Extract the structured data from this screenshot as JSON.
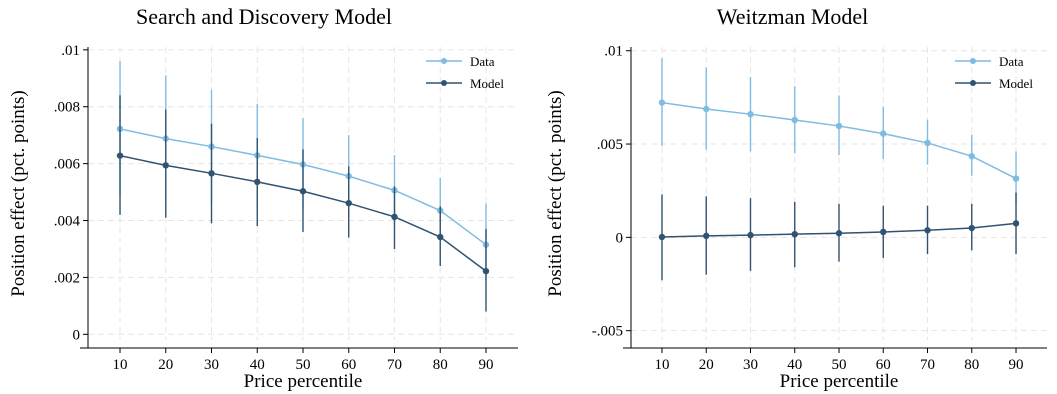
{
  "chart_data": [
    {
      "type": "line",
      "title": "Search and Discovery Model",
      "xlabel": "Price percentile",
      "ylabel": "Position effect (pct. points)",
      "x": [
        10,
        20,
        30,
        40,
        50,
        60,
        70,
        80,
        90
      ],
      "xlim": [
        3,
        97
      ],
      "ylim": [
        -0.0002,
        0.0101
      ],
      "xticks": [
        10,
        20,
        30,
        40,
        50,
        60,
        70,
        80,
        90
      ],
      "yticks": [
        0,
        0.002,
        0.004,
        0.006,
        0.008,
        0.01
      ],
      "ytick_labels": [
        "0",
        ".002",
        ".004",
        ".006",
        ".008",
        ".01"
      ],
      "grid": true,
      "legend_position": "top-right",
      "series": [
        {
          "name": "Data",
          "color": "#7fbce1",
          "values": [
            0.00722,
            0.00688,
            0.0066,
            0.00629,
            0.00597,
            0.00556,
            0.00506,
            0.00435,
            0.00315
          ],
          "ci_low": [
            0.0049,
            0.0047,
            0.0046,
            0.0045,
            0.0044,
            0.0042,
            0.0039,
            0.0033,
            0.0019
          ],
          "ci_high": [
            0.0096,
            0.0091,
            0.0086,
            0.0081,
            0.0076,
            0.007,
            0.0063,
            0.0055,
            0.0046
          ]
        },
        {
          "name": "Model",
          "color": "#2f5371",
          "values": [
            0.00628,
            0.00594,
            0.00566,
            0.00536,
            0.00503,
            0.00461,
            0.00413,
            0.00342,
            0.00222
          ],
          "ci_low": [
            0.0042,
            0.0041,
            0.0039,
            0.0038,
            0.0036,
            0.0034,
            0.003,
            0.0024,
            0.0008
          ],
          "ci_high": [
            0.0084,
            0.0079,
            0.0074,
            0.0069,
            0.0065,
            0.0059,
            0.0052,
            0.0045,
            0.0037
          ]
        }
      ]
    },
    {
      "type": "line",
      "title": "Weitzman Model",
      "xlabel": "Price percentile",
      "ylabel": "Position effect (pct. points)",
      "x": [
        10,
        20,
        30,
        40,
        50,
        60,
        70,
        80,
        90
      ],
      "xlim": [
        3,
        97
      ],
      "ylim": [
        -0.0055,
        0.0102
      ],
      "xticks": [
        10,
        20,
        30,
        40,
        50,
        60,
        70,
        80,
        90
      ],
      "yticks": [
        -0.005,
        0,
        0.005,
        0.01
      ],
      "ytick_labels": [
        "-.005",
        "0",
        ".005",
        ".01"
      ],
      "grid": true,
      "legend_position": "top-right",
      "series": [
        {
          "name": "Data",
          "color": "#7fbce1",
          "values": [
            0.00722,
            0.00688,
            0.0066,
            0.00629,
            0.00597,
            0.00556,
            0.00506,
            0.00435,
            0.00315
          ],
          "ci_low": [
            0.0049,
            0.0047,
            0.0046,
            0.0045,
            0.0044,
            0.0042,
            0.0039,
            0.0033,
            0.0018
          ],
          "ci_high": [
            0.0096,
            0.0091,
            0.0086,
            0.0081,
            0.0076,
            0.007,
            0.0063,
            0.0055,
            0.0046
          ]
        },
        {
          "name": "Model",
          "color": "#2f5371",
          "values": [
            2e-05,
            8e-05,
            0.00012,
            0.00017,
            0.00022,
            0.00029,
            0.00038,
            0.0005,
            0.00075
          ],
          "ci_low": [
            -0.0023,
            -0.002,
            -0.0018,
            -0.0016,
            -0.0013,
            -0.0011,
            -0.0009,
            -0.0007,
            -0.0009
          ],
          "ci_high": [
            0.0023,
            0.0022,
            0.0021,
            0.0019,
            0.0018,
            0.0017,
            0.0017,
            0.0018,
            0.0024
          ]
        }
      ]
    }
  ]
}
